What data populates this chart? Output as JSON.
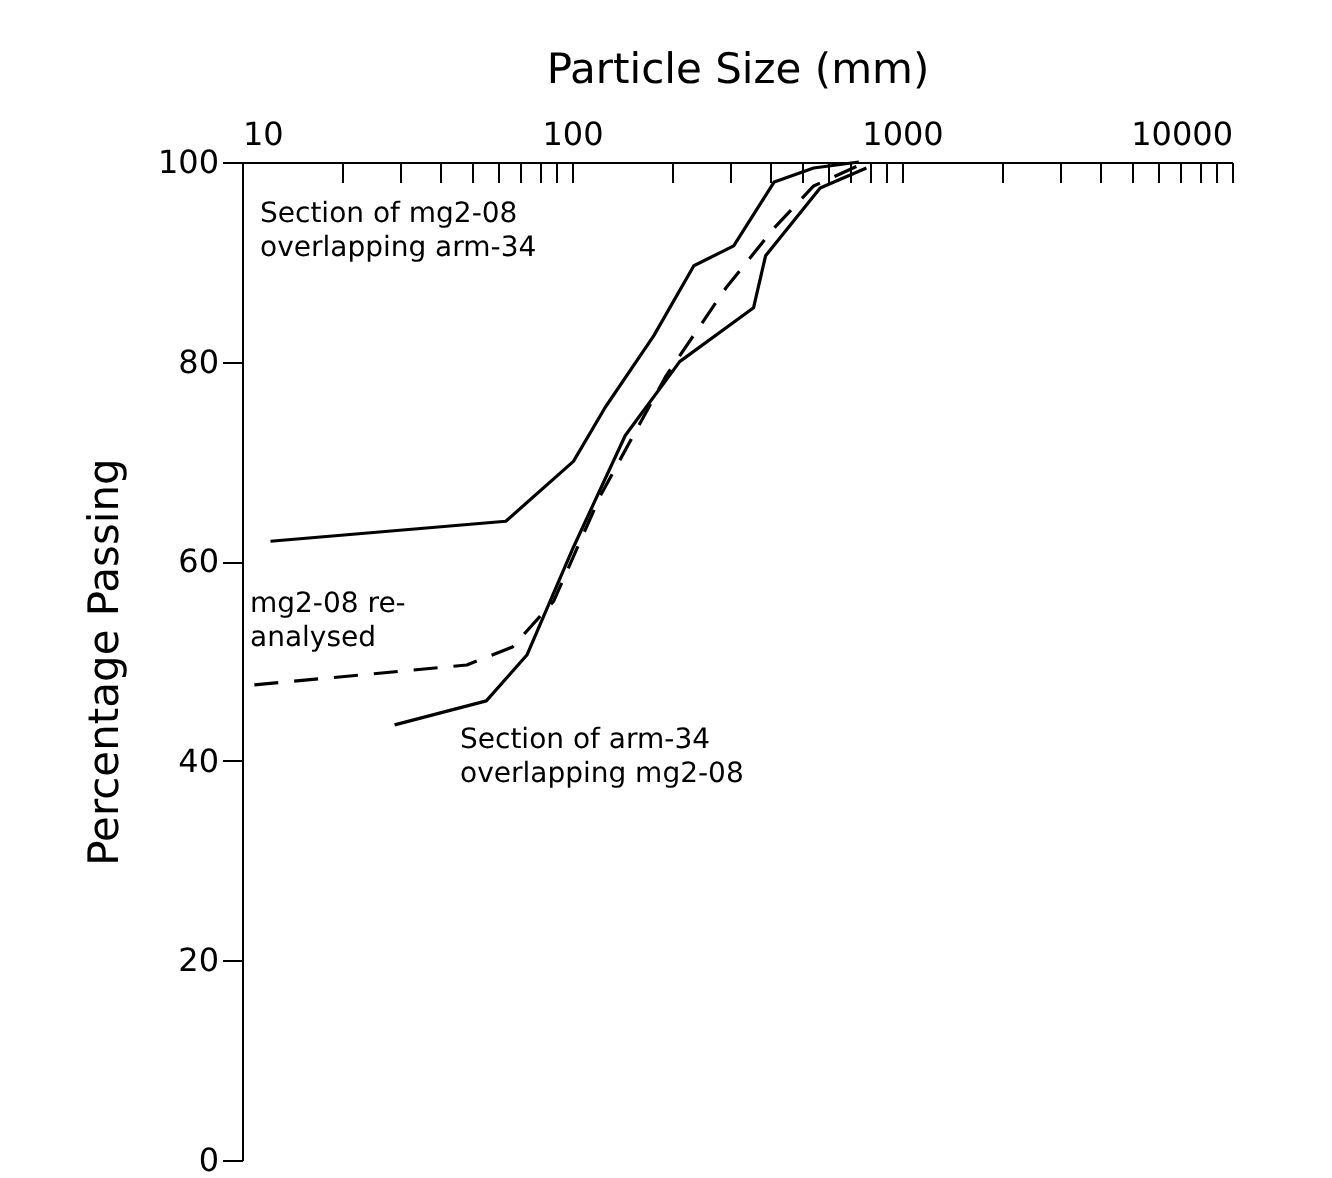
{
  "chart_data": {
    "type": "line",
    "xlabel": "Particle Size (mm)",
    "ylabel": "Percentage Passing",
    "log": "x",
    "xlim": [
      10,
      10000
    ],
    "ylim": [
      0,
      100
    ],
    "xticks": [
      10,
      {
        "value": 20,
        "label": null
      },
      {
        "value": 30,
        "label": null
      },
      {
        "value": 40,
        "label": null
      },
      {
        "value": 50,
        "label": null
      },
      {
        "value": 60,
        "label": null
      },
      {
        "value": 70,
        "label": null
      },
      {
        "value": 80,
        "label": null
      },
      {
        "value": 90,
        "label": null
      },
      100,
      {
        "value": 200,
        "label": null
      },
      {
        "value": 300,
        "label": null
      },
      {
        "value": 400,
        "label": null
      },
      {
        "value": 500,
        "label": null
      },
      {
        "value": 600,
        "label": null
      },
      {
        "value": 700,
        "label": null
      },
      {
        "value": 800,
        "label": null
      },
      {
        "value": 900,
        "label": null
      },
      1000,
      {
        "value": 2000,
        "label": null
      },
      {
        "value": 3000,
        "label": null
      },
      {
        "value": 4000,
        "label": null
      },
      {
        "value": 5000,
        "label": null
      },
      {
        "value": 6000,
        "label": null
      },
      {
        "value": 7000,
        "label": null
      },
      {
        "value": 8000,
        "label": null
      },
      {
        "value": 9000,
        "label": null
      },
      10000
    ],
    "yticks": [
      0,
      20,
      40,
      60,
      80,
      100
    ],
    "grid": false,
    "legend": false,
    "marker": "none",
    "series": [
      {
        "color": "#000000",
        "line_style": "solid",
        "x": [
          12.2,
          63,
          101,
          126,
          177,
          234,
          309,
          410,
          540,
          740
        ],
        "values": [
          62,
          64,
          70,
          75.4,
          82.6,
          89.6,
          91.6,
          98,
          99.4,
          100
        ]
      },
      {
        "color": "#000000",
        "line_style": "dashed",
        "x": [
          10.9,
          48,
          66,
          88,
          122,
          193,
          293,
          410,
          540,
          780
        ],
        "values": [
          47.6,
          49.6,
          51.4,
          56,
          66.6,
          78.6,
          87.4,
          93.4,
          97.6,
          100
        ]
      },
      {
        "color": "#000000",
        "line_style": "solid",
        "x": [
          29,
          55,
          73,
          101,
          145,
          212,
          355,
          386,
          565,
          780
        ],
        "values": [
          43.6,
          46,
          50.6,
          61.4,
          72.6,
          80,
          85.4,
          90.6,
          97.4,
          99.4
        ]
      }
    ],
    "annotations": [
      "Section of mg2-08\noverlapping arm-34",
      "mg2-08 re-\n  analysed",
      "Section of arm-34\noverlapping mg2-08"
    ]
  }
}
